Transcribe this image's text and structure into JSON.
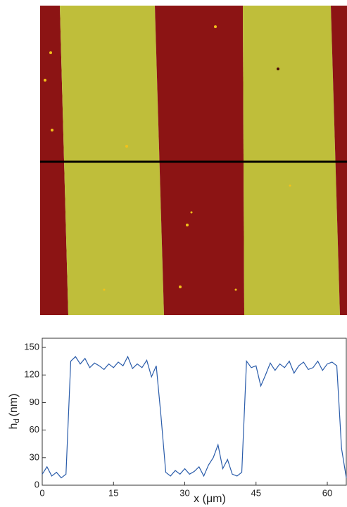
{
  "chart_data": {
    "type": "line",
    "x_label": "x (μm)",
    "y_label": {
      "main": "h",
      "sub": "d",
      "unit": "(nm)"
    },
    "x": [
      0,
      1,
      2,
      3,
      4,
      5,
      6,
      7,
      8,
      9,
      10,
      11,
      12,
      13,
      14,
      15,
      16,
      17,
      18,
      19,
      20,
      21,
      22,
      23,
      24,
      25,
      26,
      27,
      28,
      29,
      30,
      31,
      32,
      33,
      34,
      35,
      36,
      37,
      38,
      39,
      40,
      41,
      42,
      43,
      44,
      45,
      46,
      47,
      48,
      49,
      50,
      51,
      52,
      53,
      54,
      55,
      56,
      57,
      58,
      59,
      60,
      61,
      62,
      63,
      64
    ],
    "series": [
      {
        "color": "#2a5caa",
        "values": [
          12,
          20,
          10,
          14,
          8,
          12,
          135,
          140,
          132,
          138,
          128,
          133,
          130,
          126,
          132,
          128,
          134,
          130,
          140,
          127,
          132,
          128,
          136,
          118,
          130,
          75,
          14,
          10,
          16,
          12,
          18,
          12,
          15,
          20,
          10,
          22,
          30,
          44,
          18,
          28,
          12,
          10,
          14,
          135,
          128,
          130,
          108,
          120,
          133,
          125,
          132,
          128,
          135,
          122,
          130,
          134,
          126,
          128,
          135,
          125,
          132,
          134,
          130,
          40,
          8
        ]
      }
    ],
    "xlim": [
      0,
      64
    ],
    "ylim": [
      0,
      160
    ],
    "xticks": [
      0,
      15,
      30,
      45,
      60
    ],
    "yticks": [
      0,
      30,
      60,
      90,
      120,
      150
    ]
  }
}
